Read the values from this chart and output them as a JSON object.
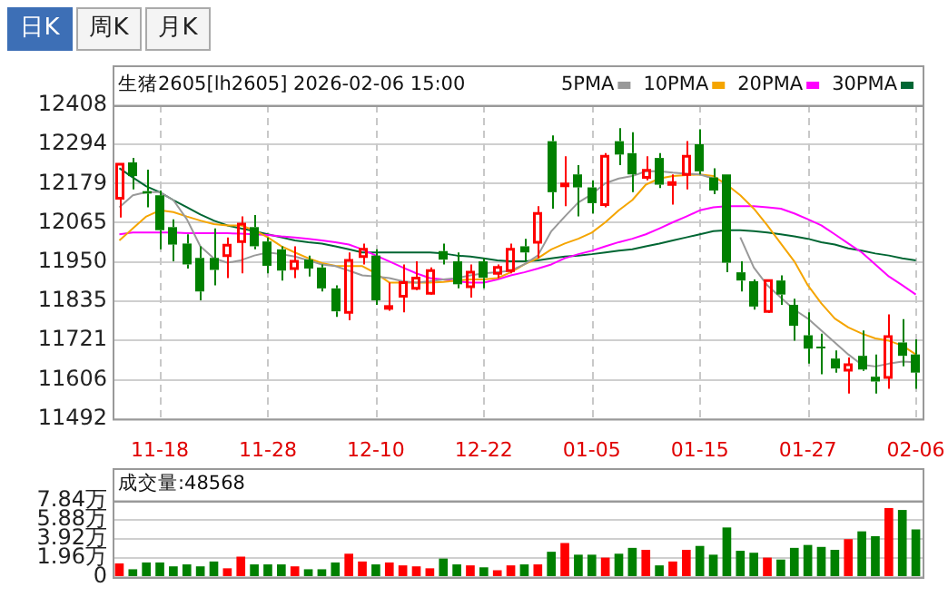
{
  "chart_data": [
    {
      "type": "candlestick",
      "title": "生猪2605[lh2605] 2026-02-06 15:00",
      "annotations": [
        "日K",
        "周K",
        "月K"
      ],
      "categories": [
        null,
        null,
        null,
        "11-18",
        null,
        null,
        null,
        null,
        null,
        null,
        null,
        "11-28",
        null,
        null,
        null,
        null,
        null,
        null,
        null,
        "12-10",
        null,
        null,
        null,
        null,
        null,
        null,
        null,
        "12-22",
        null,
        null,
        null,
        null,
        null,
        null,
        null,
        "01-05",
        null,
        null,
        null,
        null,
        null,
        null,
        null,
        "01-15",
        null,
        null,
        null,
        null,
        null,
        null,
        null,
        "01-27",
        null,
        null,
        null,
        null,
        null,
        null,
        null,
        "02-06"
      ],
      "ohlc": [
        [
          12136,
          12236,
          12080,
          12236
        ],
        [
          12241,
          12254,
          12162,
          12201
        ],
        [
          12157,
          12220,
          12110,
          12150
        ],
        [
          12145,
          12159,
          11987,
          12043
        ],
        [
          12052,
          12075,
          11952,
          12001
        ],
        [
          12004,
          12031,
          11931,
          11943
        ],
        [
          11962,
          11996,
          11838,
          11864
        ],
        [
          11962,
          12048,
          11882,
          11927
        ],
        [
          11969,
          12022,
          11903,
          11999
        ],
        [
          12010,
          12083,
          11917,
          12061
        ],
        [
          12052,
          12087,
          11987,
          11996
        ],
        [
          12010,
          12022,
          11917,
          11939
        ],
        [
          11987,
          11996,
          11896,
          11925
        ],
        [
          11931,
          11996,
          11903,
          11952
        ],
        [
          11957,
          11969,
          11908,
          11931
        ],
        [
          11934,
          11943,
          11864,
          11873
        ],
        [
          11873,
          11882,
          11790,
          11806
        ],
        [
          11803,
          11978,
          11780,
          11955
        ],
        [
          11966,
          12004,
          11943,
          11987
        ],
        [
          11969,
          11987,
          11825,
          11838
        ],
        [
          11817,
          11890,
          11808,
          11820
        ],
        [
          11850,
          11943,
          11803,
          11890
        ],
        [
          11873,
          11952,
          11868,
          11903
        ],
        [
          11859,
          11934,
          11855,
          11925
        ],
        [
          11982,
          12004,
          11943,
          11957
        ],
        [
          11952,
          11978,
          11873,
          11885
        ],
        [
          11878,
          11943,
          11846,
          11920
        ],
        [
          11952,
          11961,
          11873,
          11904
        ],
        [
          11917,
          11943,
          11903,
          11934
        ],
        [
          11925,
          12004,
          11917,
          11987
        ],
        [
          11996,
          12018,
          11952,
          11978
        ],
        [
          12008,
          12113,
          11961,
          12092
        ],
        [
          12303,
          12320,
          12106,
          12154
        ],
        [
          12175,
          12259,
          12113,
          12178
        ],
        [
          12206,
          12233,
          12083,
          12168
        ],
        [
          12168,
          12189,
          12092,
          12122
        ],
        [
          12118,
          12268,
          12110,
          12259
        ],
        [
          12303,
          12341,
          12233,
          12264
        ],
        [
          12268,
          12329,
          12154,
          12206
        ],
        [
          12197,
          12259,
          12189,
          12218
        ],
        [
          12254,
          12268,
          12166,
          12176
        ],
        [
          12178,
          12206,
          12118,
          12182
        ],
        [
          12206,
          12303,
          12162,
          12259
        ],
        [
          12294,
          12338,
          12206,
          12215
        ],
        [
          12197,
          12224,
          12148,
          12159
        ],
        [
          12206,
          12206,
          11920,
          11948
        ],
        [
          11920,
          11952,
          11864,
          11896
        ],
        [
          11894,
          11899,
          11811,
          11820
        ],
        [
          11806,
          11899,
          11801,
          11896
        ],
        [
          11896,
          11911,
          11825,
          11855
        ],
        [
          11825,
          11843,
          11720,
          11764
        ],
        [
          11736,
          11803,
          11653,
          11697
        ],
        [
          11703,
          11741,
          11622,
          11699
        ],
        [
          11668,
          11692,
          11627,
          11639
        ],
        [
          11634,
          11671,
          11566,
          11650
        ],
        [
          11676,
          11750,
          11632,
          11636
        ],
        [
          11615,
          11680,
          11566,
          11601
        ],
        [
          11613,
          11797,
          11580,
          11732
        ],
        [
          11715,
          11783,
          11645,
          11676
        ],
        [
          11680,
          11724,
          11580,
          11627
        ]
      ],
      "colors": [
        "#ff0000",
        "#008000",
        "#008000",
        "#008000",
        "#008000",
        "#008000",
        "#008000",
        "#008000",
        "#ff0000",
        "#ff0000",
        "#008000",
        "#008000",
        "#008000",
        "#ff0000",
        "#008000",
        "#008000",
        "#008000",
        "#ff0000",
        "#ff0000",
        "#008000",
        "#ff0000",
        "#ff0000",
        "#ff0000",
        "#ff0000",
        "#008000",
        "#008000",
        "#ff0000",
        "#008000",
        "#ff0000",
        "#ff0000",
        "#008000",
        "#ff0000",
        "#008000",
        "#ff0000",
        "#008000",
        "#008000",
        "#ff0000",
        "#008000",
        "#008000",
        "#ff0000",
        "#008000",
        "#ff0000",
        "#ff0000",
        "#008000",
        "#008000",
        "#008000",
        "#008000",
        "#008000",
        "#ff0000",
        "#008000",
        "#008000",
        "#008000",
        "#008000",
        "#008000",
        "#ff0000",
        "#008000",
        "#008000",
        "#ff0000",
        "#008000",
        "#008000"
      ],
      "series": [
        {
          "type": "line",
          "name": "5PMA",
          "color": "#999999",
          "values": [
            12110,
            12145,
            12154,
            12154,
            12131,
            12075,
            11996,
            11961,
            11948,
            11955,
            11969,
            11978,
            11973,
            11966,
            11955,
            11943,
            11938,
            11925,
            11911,
            11908,
            11903,
            11894,
            11890,
            11894,
            11899,
            11903,
            11911,
            11917,
            11920,
            11925,
            11943,
            11969,
            12040,
            12083,
            12124,
            12148,
            12180,
            12194,
            12201,
            12215,
            12215,
            12211,
            12208,
            12206,
            12194,
            null,
            12022,
            11934,
            11882,
            11846,
            11811,
            11785,
            11750,
            11715,
            11680,
            11650,
            11645,
            11653,
            11659,
            11657
          ]
        },
        {
          "type": "line",
          "name": "10PMA",
          "color": "#f5a500",
          "values": [
            12013,
            12048,
            12083,
            12101,
            12096,
            12083,
            12071,
            12061,
            12057,
            12057,
            12043,
            12022,
            11996,
            11978,
            11961,
            11947,
            11939,
            11938,
            11938,
            11917,
            11890,
            11890,
            11890,
            11890,
            11892,
            11896,
            11899,
            11899,
            11903,
            11920,
            11943,
            11961,
            11987,
            12004,
            12018,
            12036,
            12066,
            12101,
            12131,
            12176,
            12194,
            12201,
            12204,
            12206,
            12201,
            12176,
            12145,
            12106,
            12057,
            12004,
            11952,
            11882,
            11829,
            11785,
            11759,
            11741,
            11727,
            11720,
            11706,
            11680
          ]
        },
        {
          "type": "line",
          "name": "20PMA",
          "color": "#ff00ff",
          "values": [
            12031,
            12036,
            12036,
            12036,
            12036,
            12034,
            12034,
            12034,
            12034,
            12033,
            12031,
            12029,
            12025,
            12022,
            12018,
            12013,
            12008,
            12001,
            11987,
            11969,
            11952,
            11934,
            11917,
            11903,
            11899,
            11894,
            11890,
            11890,
            11899,
            11911,
            11920,
            11931,
            11943,
            11961,
            11973,
            11983,
            11996,
            12008,
            12018,
            12031,
            12048,
            12066,
            12083,
            12101,
            12110,
            12113,
            12113,
            12113,
            12110,
            12106,
            12092,
            12075,
            12057,
            12031,
            12004,
            11978,
            11943,
            11908,
            11882,
            11855
          ]
        },
        {
          "type": "line",
          "name": "30PMA",
          "color": "#006633",
          "values": [
            12224,
            12197,
            12171,
            12154,
            12131,
            12110,
            12089,
            12071,
            12057,
            12048,
            12040,
            12031,
            12022,
            12013,
            12008,
            12004,
            11996,
            11987,
            11978,
            11978,
            11978,
            11978,
            11978,
            11978,
            11975,
            11969,
            11966,
            11961,
            11955,
            11952,
            11952,
            11955,
            11961,
            11966,
            11969,
            11973,
            11978,
            11983,
            11987,
            11996,
            12004,
            12013,
            12022,
            12031,
            12040,
            12043,
            12043,
            12040,
            12036,
            12031,
            12025,
            12018,
            12008,
            12001,
            11990,
            11983,
            11975,
            11969,
            11961,
            11955
          ]
        }
      ],
      "ylim": [
        11492,
        12408
      ],
      "yticks": [
        11492,
        11606,
        11721,
        11835,
        11950,
        12065,
        12179,
        12294,
        12408
      ],
      "grid": true,
      "legend": "top right"
    },
    {
      "type": "bar",
      "title": "成交量:48568",
      "categories": [
        null,
        null,
        null,
        null,
        null,
        null,
        null,
        null,
        null,
        null,
        null,
        null,
        null,
        null,
        null,
        null,
        null,
        null,
        null,
        null,
        null,
        null,
        null,
        null,
        null,
        null,
        null,
        null,
        null,
        null,
        null,
        null,
        null,
        null,
        null,
        null,
        null,
        null,
        null,
        null,
        null,
        null,
        null,
        null,
        null,
        null,
        null,
        null,
        null,
        null,
        null,
        null,
        null,
        null,
        null,
        null,
        null,
        null,
        null,
        null
      ],
      "values": [
        1.4,
        0.8,
        1.5,
        1.5,
        1.1,
        1.3,
        1.1,
        1.6,
        0.9,
        2.1,
        1.3,
        1.3,
        1.3,
        1.1,
        0.8,
        0.8,
        1.5,
        2.4,
        1.6,
        1.3,
        1.5,
        1.2,
        1.1,
        0.9,
        1.9,
        1.3,
        1.2,
        1.0,
        0.7,
        1.2,
        1.3,
        1.3,
        2.6,
        3.5,
        2.3,
        2.3,
        2.0,
        2.4,
        3.0,
        2.8,
        1.2,
        1.6,
        2.8,
        3.2,
        2.3,
        5.1,
        2.7,
        2.5,
        2.0,
        1.8,
        3.0,
        3.3,
        3.1,
        2.8,
        3.9,
        4.7,
        4.2,
        7.1,
        6.9,
        4.9
      ],
      "colors": [
        "#ff0000",
        "#008000",
        "#008000",
        "#008000",
        "#008000",
        "#008000",
        "#008000",
        "#008000",
        "#ff0000",
        "#ff0000",
        "#008000",
        "#008000",
        "#008000",
        "#ff0000",
        "#008000",
        "#008000",
        "#008000",
        "#ff0000",
        "#ff0000",
        "#008000",
        "#ff0000",
        "#ff0000",
        "#ff0000",
        "#ff0000",
        "#008000",
        "#008000",
        "#ff0000",
        "#008000",
        "#ff0000",
        "#ff0000",
        "#008000",
        "#ff0000",
        "#008000",
        "#ff0000",
        "#008000",
        "#008000",
        "#ff0000",
        "#008000",
        "#008000",
        "#ff0000",
        "#008000",
        "#ff0000",
        "#ff0000",
        "#008000",
        "#008000",
        "#008000",
        "#008000",
        "#008000",
        "#ff0000",
        "#008000",
        "#008000",
        "#008000",
        "#008000",
        "#008000",
        "#ff0000",
        "#008000",
        "#008000",
        "#ff0000",
        "#008000",
        "#008000"
      ],
      "ylim": [
        0,
        7.84
      ],
      "yticks": [
        0,
        {
          "value": 1.96,
          "label": "1.96万"
        },
        {
          "value": 3.92,
          "label": "3.92万"
        },
        {
          "value": 5.88,
          "label": "5.88万"
        },
        {
          "value": 7.84,
          "label": "7.84万"
        }
      ],
      "grid": true,
      "tick_labels": "y"
    }
  ]
}
